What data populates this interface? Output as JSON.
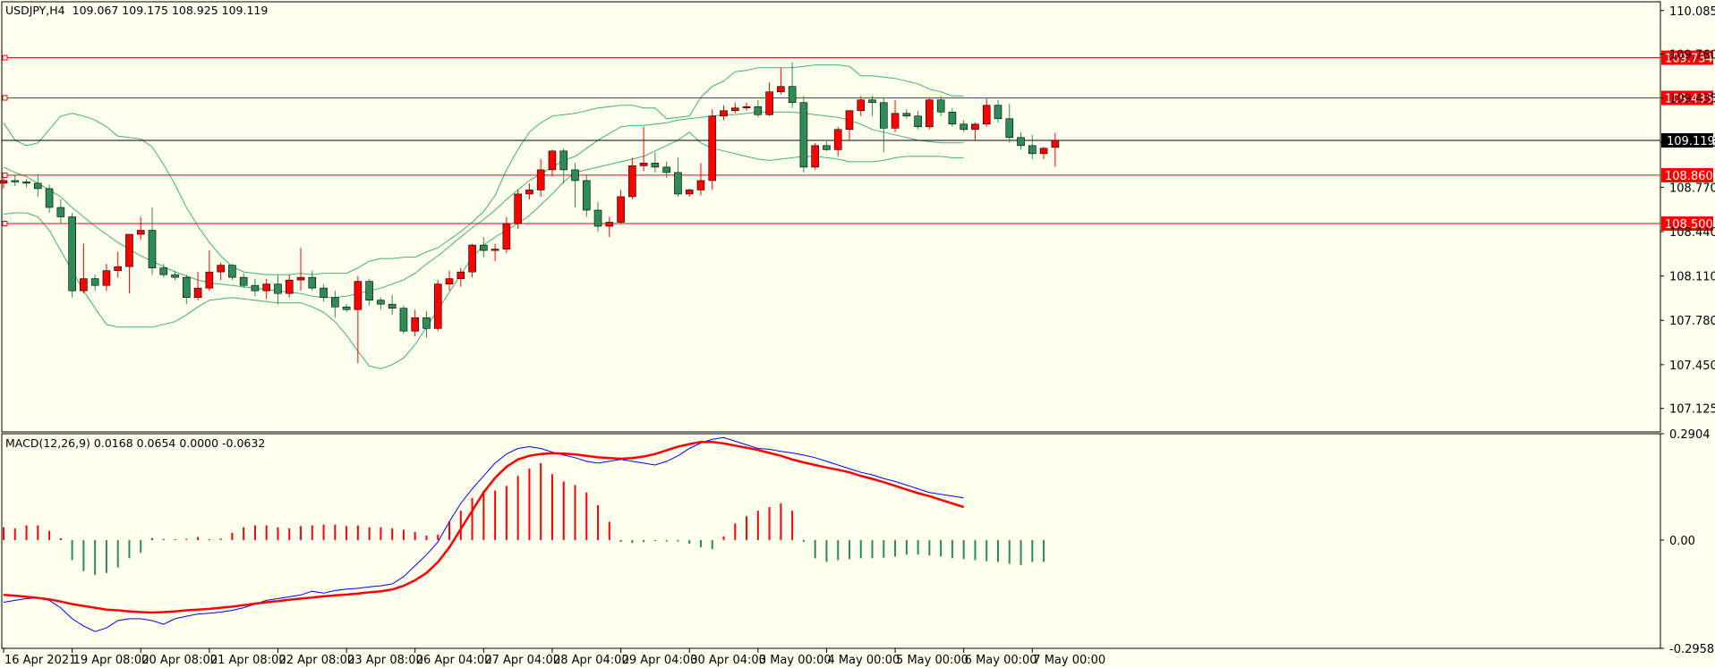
{
  "header": {
    "symbol": "USDJPY,H4",
    "ohlc": "109.067 109.175 108.925 109.119"
  },
  "macd_header": "MACD(12,26,9) 0.0168 0.0654 0.0000 -0.0632",
  "colors": {
    "background": "#fffff0",
    "bull": "#ff0000",
    "bear": "#2e8b57",
    "bands": "#3cb371",
    "hline": "#ff0000",
    "macd_line": "#0000ff",
    "signal_line": "#ff0000"
  },
  "chart_data": [
    {
      "type": "candlestick",
      "title": "USDJPY,H4",
      "ylim": [
        106.95,
        110.15
      ],
      "y_ticks": [
        "110.085",
        "109.760",
        "109.435",
        "109.105",
        "108.770",
        "108.440",
        "108.110",
        "107.780",
        "107.450",
        "107.125"
      ],
      "x_ticks": [
        "16 Apr 2021",
        "19 Apr 08:00",
        "20 Apr 08:00",
        "21 Apr 08:00",
        "22 Apr 08:00",
        "23 Apr 08:00",
        "26 Apr 04:00",
        "27 Apr 04:00",
        "28 Apr 04:00",
        "29 Apr 04:00",
        "30 Apr 04:00",
        "3 May 00:00",
        "4 May 00:00",
        "5 May 00:00",
        "6 May 00:00",
        "7 May 00:00"
      ],
      "current_price": "109.119",
      "horizontal_levels": [
        "109.734",
        "109.435",
        "108.860",
        "108.500"
      ],
      "ohlc": [
        [
          108.8,
          108.84,
          108.76,
          108.82
        ],
        [
          108.82,
          108.86,
          108.78,
          108.81
        ],
        [
          108.81,
          108.83,
          108.77,
          108.8
        ],
        [
          108.8,
          108.87,
          108.7,
          108.76
        ],
        [
          108.76,
          108.79,
          108.58,
          108.62
        ],
        [
          108.62,
          108.68,
          108.5,
          108.55
        ],
        [
          108.55,
          108.58,
          107.95,
          108.0
        ],
        [
          108.0,
          108.35,
          107.98,
          108.09
        ],
        [
          108.09,
          108.12,
          108.0,
          108.04
        ],
        [
          108.04,
          108.2,
          108.0,
          108.15
        ],
        [
          108.15,
          108.29,
          108.1,
          108.18
        ],
        [
          108.18,
          108.4,
          107.98,
          108.42
        ],
        [
          108.42,
          108.55,
          108.38,
          108.45
        ],
        [
          108.45,
          108.62,
          108.12,
          108.17
        ],
        [
          108.17,
          108.2,
          108.1,
          108.12
        ],
        [
          108.12,
          108.15,
          108.08,
          108.1
        ],
        [
          108.1,
          108.12,
          107.9,
          107.95
        ],
        [
          107.95,
          108.14,
          107.93,
          108.02
        ],
        [
          108.02,
          108.3,
          108.0,
          108.14
        ],
        [
          108.14,
          108.21,
          108.08,
          108.19
        ],
        [
          108.19,
          108.2,
          108.08,
          108.1
        ],
        [
          108.1,
          108.13,
          108.02,
          108.04
        ],
        [
          108.04,
          108.09,
          107.96,
          108.0
        ],
        [
          108.0,
          108.09,
          107.94,
          108.05
        ],
        [
          108.05,
          108.12,
          107.9,
          107.98
        ],
        [
          107.98,
          108.12,
          107.95,
          108.08
        ],
        [
          108.08,
          108.32,
          108.0,
          108.1
        ],
        [
          108.1,
          108.15,
          108.0,
          108.02
        ],
        [
          108.02,
          108.05,
          107.92,
          107.95
        ],
        [
          107.95,
          108.0,
          107.8,
          107.88
        ],
        [
          107.88,
          107.9,
          107.84,
          107.86
        ],
        [
          107.86,
          108.11,
          107.46,
          108.07
        ],
        [
          108.07,
          108.09,
          107.89,
          107.93
        ],
        [
          107.93,
          107.95,
          107.86,
          107.9
        ],
        [
          107.9,
          107.97,
          107.82,
          107.87
        ],
        [
          107.87,
          107.89,
          107.68,
          107.7
        ],
        [
          107.7,
          107.86,
          107.66,
          107.8
        ],
        [
          107.8,
          107.85,
          107.65,
          107.72
        ],
        [
          107.72,
          108.08,
          107.7,
          108.05
        ],
        [
          108.05,
          108.15,
          108.0,
          108.09
        ],
        [
          108.09,
          108.17,
          108.03,
          108.14
        ],
        [
          108.14,
          108.35,
          108.1,
          108.34
        ],
        [
          108.34,
          108.4,
          108.25,
          108.3
        ],
        [
          108.3,
          108.35,
          108.22,
          108.31
        ],
        [
          108.31,
          108.55,
          108.28,
          108.5
        ],
        [
          108.5,
          108.75,
          108.46,
          108.72
        ],
        [
          108.72,
          108.8,
          108.68,
          108.75
        ],
        [
          108.75,
          108.98,
          108.7,
          108.9
        ],
        [
          108.9,
          109.05,
          108.85,
          109.04
        ],
        [
          109.04,
          109.06,
          108.8,
          108.9
        ],
        [
          108.9,
          108.95,
          108.62,
          108.82
        ],
        [
          108.82,
          108.86,
          108.55,
          108.6
        ],
        [
          108.6,
          108.66,
          108.44,
          108.48
        ],
        [
          108.48,
          108.55,
          108.4,
          108.51
        ],
        [
          108.51,
          108.75,
          108.5,
          108.7
        ],
        [
          108.7,
          108.99,
          108.68,
          108.93
        ],
        [
          108.93,
          109.22,
          108.89,
          108.95
        ],
        [
          108.95,
          109.03,
          108.88,
          108.92
        ],
        [
          108.92,
          108.96,
          108.84,
          108.88
        ],
        [
          108.88,
          108.99,
          108.7,
          108.72
        ],
        [
          108.72,
          108.76,
          108.7,
          108.75
        ],
        [
          108.75,
          108.95,
          108.71,
          108.82
        ],
        [
          108.82,
          109.35,
          108.75,
          109.3
        ],
        [
          109.3,
          109.38,
          109.27,
          109.34
        ],
        [
          109.34,
          109.4,
          109.32,
          109.36
        ],
        [
          109.36,
          109.4,
          109.34,
          109.37
        ],
        [
          109.37,
          109.42,
          109.29,
          109.31
        ],
        [
          109.31,
          109.55,
          109.3,
          109.48
        ],
        [
          109.48,
          109.66,
          109.46,
          109.52
        ],
        [
          109.52,
          109.7,
          109.36,
          109.4
        ],
        [
          109.4,
          109.45,
          108.88,
          108.92
        ],
        [
          108.92,
          109.1,
          108.9,
          109.08
        ],
        [
          109.08,
          109.12,
          109.04,
          109.05
        ],
        [
          109.05,
          109.22,
          109.0,
          109.2
        ],
        [
          109.2,
          109.33,
          109.12,
          109.34
        ],
        [
          109.34,
          109.45,
          109.3,
          109.42
        ],
        [
          109.42,
          109.45,
          109.3,
          109.4
        ],
        [
          109.4,
          109.44,
          109.03,
          109.21
        ],
        [
          109.21,
          109.42,
          109.18,
          109.32
        ],
        [
          109.32,
          109.35,
          109.28,
          109.3
        ],
        [
          109.3,
          109.34,
          109.2,
          109.22
        ],
        [
          109.22,
          109.44,
          109.2,
          109.42
        ],
        [
          109.42,
          109.45,
          109.3,
          109.33
        ],
        [
          109.33,
          109.36,
          109.22,
          109.24
        ],
        [
          109.24,
          109.27,
          109.18,
          109.2
        ],
        [
          109.2,
          109.25,
          109.12,
          109.24
        ],
        [
          109.24,
          109.43,
          109.22,
          109.38
        ],
        [
          109.38,
          109.42,
          109.25,
          109.28
        ],
        [
          109.28,
          109.39,
          109.1,
          109.14
        ],
        [
          109.14,
          109.18,
          109.05,
          109.08
        ],
        [
          109.08,
          109.16,
          108.98,
          109.02
        ],
        [
          109.02,
          109.07,
          108.98,
          109.06
        ],
        [
          109.067,
          109.175,
          108.925,
          109.119
        ]
      ],
      "bollinger": {
        "upper": [
          109.25,
          109.12,
          109.08,
          109.1,
          109.2,
          109.3,
          109.32,
          109.3,
          109.27,
          109.22,
          109.15,
          109.14,
          109.13,
          109.07,
          108.94,
          108.79,
          108.62,
          108.48,
          108.36,
          108.26,
          108.18,
          108.14,
          108.13,
          108.12,
          108.12,
          108.12,
          108.13,
          108.12,
          108.13,
          108.13,
          108.13,
          108.17,
          108.22,
          108.24,
          108.24,
          108.25,
          108.25,
          108.29,
          108.32,
          108.38,
          108.44,
          108.51,
          108.59,
          108.71,
          108.9,
          109.05,
          109.18,
          109.25,
          109.3,
          109.31,
          109.32,
          109.34,
          109.36,
          109.37,
          109.38,
          109.38,
          109.36,
          109.36,
          109.28,
          109.29,
          109.3,
          109.44,
          109.52,
          109.56,
          109.63,
          109.64,
          109.66,
          109.66,
          109.66,
          109.66,
          109.67,
          109.68,
          109.68,
          109.68,
          109.67,
          109.6,
          109.6,
          109.59,
          109.58,
          109.56,
          109.54,
          109.5,
          109.48,
          109.45,
          109.45
        ],
        "middle": [
          108.92,
          108.88,
          108.85,
          108.8,
          108.75,
          108.7,
          108.62,
          108.55,
          108.48,
          108.42,
          108.36,
          108.31,
          108.26,
          108.22,
          108.18,
          108.14,
          108.11,
          108.08,
          108.06,
          108.05,
          108.04,
          108.03,
          108.02,
          108.01,
          108.0,
          107.99,
          107.98,
          107.96,
          107.95,
          107.95,
          107.96,
          107.98,
          108.0,
          108.02,
          108.05,
          108.08,
          108.13,
          108.2,
          108.26,
          108.33,
          108.4,
          108.47,
          108.53,
          108.6,
          108.68,
          108.75,
          108.82,
          108.87,
          108.92,
          108.97,
          109.0,
          109.06,
          109.12,
          109.17,
          109.22,
          109.23,
          109.23,
          109.24,
          109.25,
          109.27,
          109.28,
          109.29,
          109.3,
          109.31,
          109.31,
          109.32,
          109.33,
          109.33,
          109.33,
          109.33,
          109.32,
          109.31,
          109.3,
          109.29,
          109.27,
          109.24,
          109.2,
          109.18,
          109.16,
          109.14,
          109.12,
          109.11,
          109.1,
          109.1,
          109.1
        ],
        "lower": [
          108.57,
          108.58,
          108.58,
          108.55,
          108.45,
          108.3,
          108.15,
          108.0,
          107.87,
          107.75,
          107.73,
          107.73,
          107.73,
          107.73,
          107.75,
          107.77,
          107.82,
          107.88,
          107.93,
          107.94,
          107.95,
          107.94,
          107.93,
          107.92,
          107.91,
          107.91,
          107.91,
          107.88,
          107.84,
          107.77,
          107.67,
          107.55,
          107.44,
          107.42,
          107.45,
          107.5,
          107.6,
          107.73,
          107.86,
          107.99,
          108.12,
          108.25,
          108.34,
          108.4,
          108.45,
          108.5,
          108.56,
          108.64,
          108.72,
          108.81,
          108.88,
          108.9,
          108.92,
          108.94,
          108.96,
          108.98,
          109.0,
          109.04,
          109.08,
          109.12,
          109.18,
          109.1,
          109.06,
          109.04,
          109.02,
          109.0,
          108.98,
          108.97,
          108.98,
          108.99,
          109.0,
          109.0,
          108.99,
          108.98,
          108.96,
          108.96,
          108.96,
          108.97,
          108.99,
          109.0,
          109.0,
          109.0,
          109.0,
          108.99,
          108.99
        ]
      }
    },
    {
      "type": "macd",
      "title": "MACD(12,26,9) 0.0168 0.0654 0.0000 -0.0632",
      "params": [
        12,
        26,
        9
      ],
      "ylim": [
        -0.2958,
        0.2904
      ],
      "y_ticks": [
        "0.2904",
        "0.00",
        "-0.2958"
      ],
      "histogram": [
        0.035,
        0.032,
        0.04,
        0.04,
        0.025,
        0.005,
        -0.055,
        -0.085,
        -0.095,
        -0.09,
        -0.075,
        -0.05,
        -0.035,
        0.005,
        0.003,
        0.002,
        0.003,
        0.008,
        0.002,
        0.004,
        0.02,
        0.035,
        0.04,
        0.04,
        0.035,
        0.032,
        0.038,
        0.04,
        0.042,
        0.042,
        0.038,
        0.04,
        0.035,
        0.035,
        0.032,
        0.028,
        0.022,
        0.012,
        0.015,
        0.05,
        0.08,
        0.115,
        0.135,
        0.135,
        0.148,
        0.175,
        0.195,
        0.21,
        0.18,
        0.16,
        0.15,
        0.13,
        0.095,
        0.05,
        -0.005,
        -0.008,
        -0.006,
        -0.003,
        -0.004,
        -0.004,
        -0.01,
        -0.02,
        -0.025,
        0.01,
        0.045,
        0.065,
        0.08,
        0.09,
        0.1,
        0.08,
        -0.005,
        -0.05,
        -0.06,
        -0.055,
        -0.052,
        -0.05,
        -0.05,
        -0.048,
        -0.045,
        -0.04,
        -0.04,
        -0.042,
        -0.045,
        -0.05,
        -0.052,
        -0.055,
        -0.058,
        -0.06,
        -0.065,
        -0.068,
        -0.06,
        -0.06
      ],
      "macd": [
        -0.17,
        -0.165,
        -0.16,
        -0.158,
        -0.165,
        -0.185,
        -0.215,
        -0.235,
        -0.25,
        -0.24,
        -0.22,
        -0.215,
        -0.215,
        -0.22,
        -0.23,
        -0.215,
        -0.208,
        -0.202,
        -0.2,
        -0.197,
        -0.192,
        -0.185,
        -0.175,
        -0.165,
        -0.16,
        -0.155,
        -0.15,
        -0.14,
        -0.145,
        -0.138,
        -0.134,
        -0.132,
        -0.128,
        -0.125,
        -0.12,
        -0.1,
        -0.07,
        -0.04,
        -0.005,
        0.05,
        0.1,
        0.14,
        0.175,
        0.21,
        0.235,
        0.25,
        0.255,
        0.25,
        0.24,
        0.232,
        0.225,
        0.215,
        0.21,
        0.215,
        0.22,
        0.215,
        0.21,
        0.205,
        0.215,
        0.23,
        0.25,
        0.265,
        0.275,
        0.28,
        0.27,
        0.26,
        0.25,
        0.248,
        0.242,
        0.238,
        0.232,
        0.225,
        0.215,
        0.205,
        0.195,
        0.185,
        0.178,
        0.168,
        0.16,
        0.15,
        0.14,
        0.13,
        0.125,
        0.12,
        0.115
      ],
      "signal": [
        -0.15,
        -0.152,
        -0.155,
        -0.158,
        -0.162,
        -0.168,
        -0.175,
        -0.18,
        -0.185,
        -0.19,
        -0.192,
        -0.195,
        -0.197,
        -0.198,
        -0.197,
        -0.195,
        -0.192,
        -0.19,
        -0.188,
        -0.185,
        -0.182,
        -0.178,
        -0.174,
        -0.17,
        -0.167,
        -0.163,
        -0.16,
        -0.157,
        -0.154,
        -0.151,
        -0.149,
        -0.146,
        -0.143,
        -0.14,
        -0.135,
        -0.125,
        -0.11,
        -0.09,
        -0.06,
        -0.02,
        0.03,
        0.08,
        0.13,
        0.17,
        0.2,
        0.22,
        0.23,
        0.235,
        0.237,
        0.236,
        0.234,
        0.23,
        0.226,
        0.224,
        0.222,
        0.224,
        0.228,
        0.235,
        0.245,
        0.255,
        0.262,
        0.268,
        0.268,
        0.264,
        0.258,
        0.252,
        0.246,
        0.238,
        0.23,
        0.22,
        0.212,
        0.205,
        0.198,
        0.192,
        0.185,
        0.175,
        0.167,
        0.158,
        0.148,
        0.138,
        0.128,
        0.12,
        0.11,
        0.1,
        0.09
      ]
    }
  ]
}
